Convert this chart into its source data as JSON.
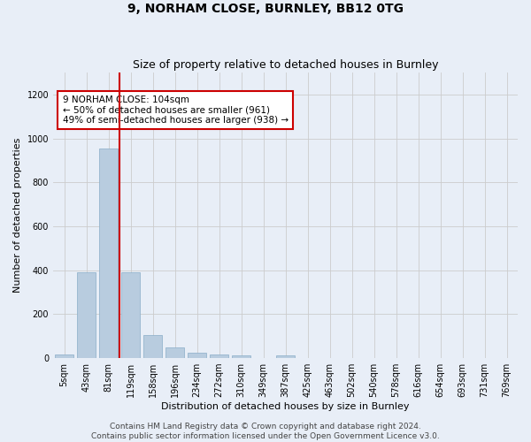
{
  "title": "9, NORHAM CLOSE, BURNLEY, BB12 0TG",
  "subtitle": "Size of property relative to detached houses in Burnley",
  "xlabel": "Distribution of detached houses by size in Burnley",
  "ylabel": "Number of detached properties",
  "categories": [
    "5sqm",
    "43sqm",
    "81sqm",
    "119sqm",
    "158sqm",
    "196sqm",
    "234sqm",
    "272sqm",
    "310sqm",
    "349sqm",
    "387sqm",
    "425sqm",
    "463sqm",
    "502sqm",
    "540sqm",
    "578sqm",
    "616sqm",
    "654sqm",
    "693sqm",
    "731sqm",
    "769sqm"
  ],
  "values": [
    15,
    390,
    955,
    390,
    105,
    50,
    25,
    15,
    13,
    0,
    13,
    0,
    0,
    0,
    0,
    0,
    0,
    0,
    0,
    0,
    0
  ],
  "bar_color": "#b8ccdf",
  "bar_edge_color": "#8aaec8",
  "vline_x": 2.5,
  "vline_color": "#cc0000",
  "annotation_text": "9 NORHAM CLOSE: 104sqm\n← 50% of detached houses are smaller (961)\n49% of semi-detached houses are larger (938) →",
  "annotation_box_color": "white",
  "annotation_box_edge_color": "#cc0000",
  "ylim": [
    0,
    1300
  ],
  "yticks": [
    0,
    200,
    400,
    600,
    800,
    1000,
    1200
  ],
  "grid_color": "#cccccc",
  "background_color": "#e8eef7",
  "plot_bg_color": "#e8eef7",
  "footer_text": "Contains HM Land Registry data © Crown copyright and database right 2024.\nContains public sector information licensed under the Open Government Licence v3.0.",
  "title_fontsize": 10,
  "subtitle_fontsize": 9,
  "xlabel_fontsize": 8,
  "ylabel_fontsize": 8,
  "tick_fontsize": 7,
  "footer_fontsize": 6.5
}
